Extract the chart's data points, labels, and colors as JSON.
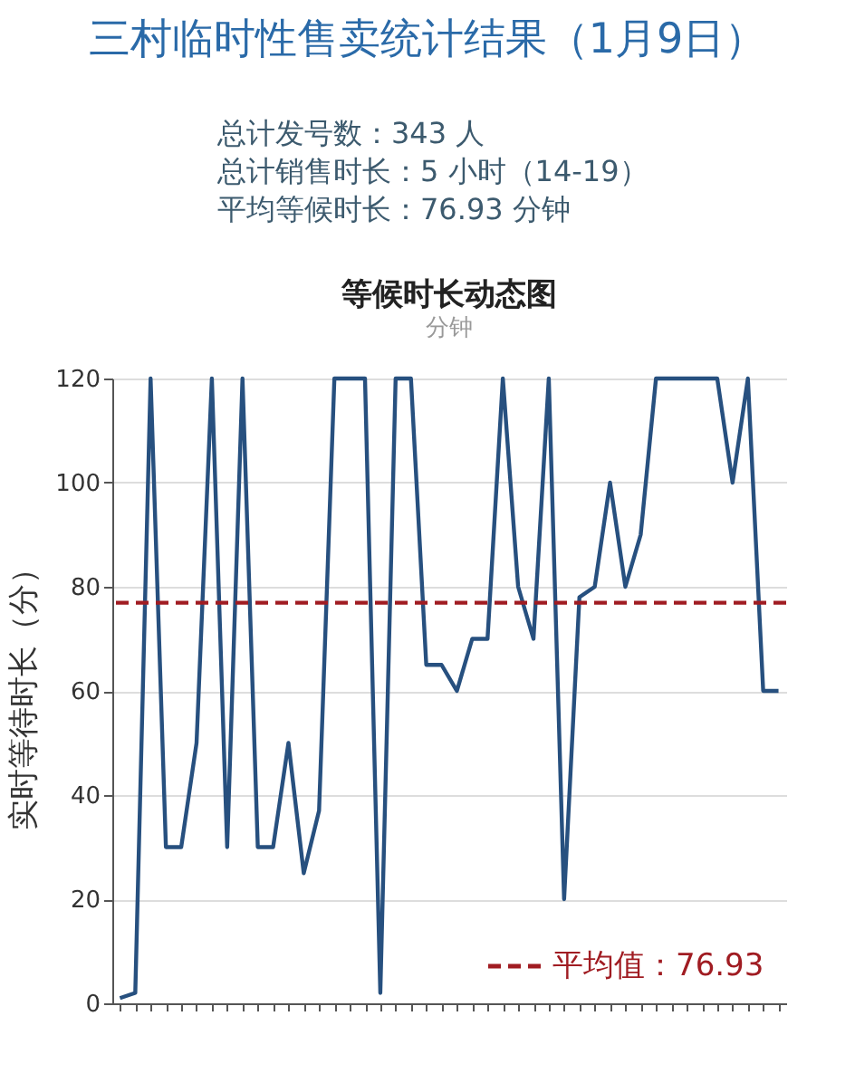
{
  "chart_data": {
    "type": "line",
    "title": "等候时长动态图",
    "subtitle": "分钟",
    "ylabel": "实时等待时长（分）",
    "annotations": [
      "三村临时性售卖统计结果（1月9日）",
      "总计发号数：343 人",
      "总计销售时长：5 小时（14-19）",
      "平均等候时长：76.93 分钟"
    ],
    "categories": [
      null,
      null,
      null,
      null,
      null,
      null,
      null,
      null,
      null,
      null,
      null,
      null,
      null,
      null,
      null,
      null,
      null,
      null,
      null,
      null,
      null,
      null,
      null,
      null,
      null,
      null,
      null,
      null,
      null,
      null,
      null,
      null,
      null,
      null,
      null,
      null,
      null,
      null,
      null,
      null,
      null,
      null,
      null,
      null
    ],
    "series": [
      {
        "color": "#27507f",
        "values": [
          1,
          2,
          120,
          30,
          30,
          50,
          120,
          30,
          120,
          30,
          30,
          50,
          25,
          37,
          120,
          120,
          120,
          2,
          120,
          120,
          65,
          65,
          60,
          70,
          70,
          120,
          80,
          70,
          120,
          20,
          78,
          80,
          100,
          80,
          90,
          120,
          120,
          120,
          120,
          120,
          100,
          120,
          60,
          60
        ]
      }
    ],
    "ylim": [
      0,
      120
    ],
    "yticks": [
      0,
      20,
      40,
      60,
      80,
      100,
      120
    ],
    "ref_lines": [
      {
        "axis": "y",
        "value": 76.93,
        "label": "平均值：76.93",
        "color": "#a01c22",
        "line_style": "dashed"
      }
    ],
    "grid": "y",
    "legend": "bottom right",
    "tick_labels": "y",
    "marker": "none",
    "line_style": "solid"
  }
}
